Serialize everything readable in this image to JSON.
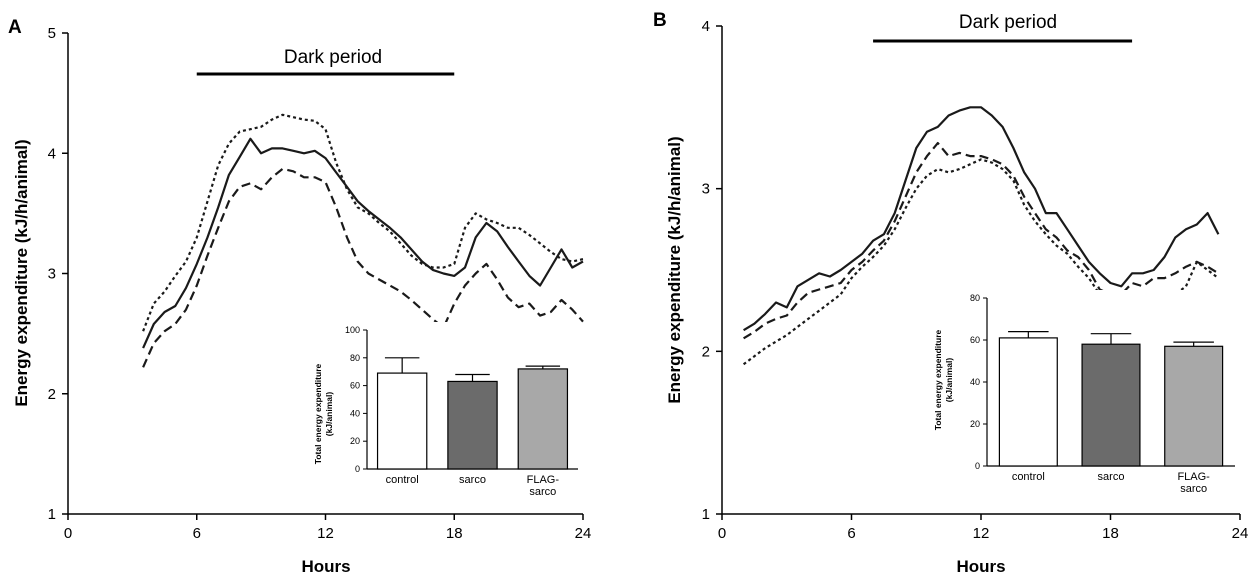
{
  "colors": {
    "axis": "#000000",
    "line": "#1a1a1a",
    "bar_control": "#ffffff",
    "bar_sarco": "#6b6b6b",
    "bar_flag": "#a8a8a8"
  },
  "chart_data": [
    {
      "type": "line",
      "panel": "A",
      "annotation": "Dark period",
      "dark_period": [
        6,
        18
      ],
      "xlabel": "Hours",
      "ylabel": "Energy expenditure (kJ/h/animal)",
      "xlim": [
        0,
        24
      ],
      "ylim": [
        1,
        5
      ],
      "x_ticks": [
        "0",
        "6",
        "12",
        "18",
        "24"
      ],
      "y_ticks": [
        "1",
        "2",
        "3",
        "4",
        "5"
      ],
      "series": [
        {
          "style": "solid",
          "x": [
            3.5,
            4,
            4.5,
            5,
            5.5,
            6,
            6.5,
            7,
            7.5,
            8,
            8.5,
            9,
            9.5,
            10,
            10.5,
            11,
            11.5,
            12,
            12.5,
            13,
            13.5,
            14,
            14.5,
            15,
            15.5,
            16,
            16.5,
            17,
            17.5,
            18,
            18.5,
            19,
            19.5,
            20,
            20.5,
            21,
            21.5,
            22,
            22.5,
            23,
            23.5,
            24
          ],
          "y": [
            2.38,
            2.58,
            2.68,
            2.73,
            2.88,
            3.08,
            3.3,
            3.55,
            3.82,
            3.97,
            4.12,
            4.0,
            4.04,
            4.04,
            4.02,
            4.0,
            4.02,
            3.96,
            3.84,
            3.72,
            3.6,
            3.52,
            3.45,
            3.38,
            3.3,
            3.2,
            3.1,
            3.03,
            3.0,
            2.98,
            3.05,
            3.3,
            3.42,
            3.35,
            3.22,
            3.1,
            2.98,
            2.9,
            3.05,
            3.2,
            3.05,
            3.1
          ]
        },
        {
          "style": "dotted",
          "x": [
            3.5,
            4,
            4.5,
            5,
            5.5,
            6,
            6.5,
            7,
            7.5,
            8,
            8.5,
            9,
            9.5,
            10,
            10.5,
            11,
            11.5,
            12,
            12.5,
            13,
            13.5,
            14,
            14.5,
            15,
            15.5,
            16,
            16.5,
            17,
            17.5,
            18,
            18.5,
            19,
            19.5,
            20,
            20.5,
            21,
            21.5,
            22,
            22.5,
            23,
            23.5,
            24
          ],
          "y": [
            2.52,
            2.75,
            2.85,
            2.98,
            3.1,
            3.3,
            3.6,
            3.9,
            4.08,
            4.18,
            4.2,
            4.22,
            4.28,
            4.32,
            4.3,
            4.28,
            4.27,
            4.2,
            3.92,
            3.7,
            3.55,
            3.5,
            3.42,
            3.35,
            3.25,
            3.15,
            3.08,
            3.05,
            3.05,
            3.08,
            3.38,
            3.5,
            3.45,
            3.42,
            3.38,
            3.38,
            3.32,
            3.25,
            3.18,
            3.12,
            3.1,
            3.12
          ]
        },
        {
          "style": "dashed",
          "x": [
            3.5,
            4,
            4.5,
            5,
            5.5,
            6,
            6.5,
            7,
            7.5,
            8,
            8.5,
            9,
            9.5,
            10,
            10.5,
            11,
            11.5,
            12,
            12.5,
            13,
            13.5,
            14,
            14.5,
            15,
            15.5,
            16,
            16.5,
            17,
            17.5,
            18,
            18.5,
            19,
            19.5,
            20,
            20.5,
            21,
            21.5,
            22,
            22.5,
            23,
            23.5,
            24
          ],
          "y": [
            2.22,
            2.42,
            2.52,
            2.58,
            2.7,
            2.9,
            3.15,
            3.38,
            3.6,
            3.72,
            3.75,
            3.7,
            3.8,
            3.87,
            3.85,
            3.8,
            3.8,
            3.76,
            3.55,
            3.3,
            3.1,
            3.0,
            2.95,
            2.9,
            2.85,
            2.78,
            2.7,
            2.62,
            2.55,
            2.75,
            2.9,
            3.0,
            3.08,
            2.95,
            2.8,
            2.72,
            2.75,
            2.65,
            2.68,
            2.78,
            2.7,
            2.6
          ]
        }
      ],
      "inset": {
        "type": "bar",
        "ylabel": "Total energy expenditure (kJ/animal)",
        "ylim": [
          0,
          100
        ],
        "y_ticks": [
          "0",
          "20",
          "40",
          "60",
          "80",
          "100"
        ],
        "categories": [
          "control",
          "sarco",
          "FLAG-\nsarco"
        ],
        "values": [
          69,
          63,
          72
        ],
        "errors": [
          11,
          5,
          2
        ]
      }
    },
    {
      "type": "line",
      "panel": "B",
      "annotation": "Dark period",
      "dark_period": [
        7,
        19
      ],
      "xlabel": "Hours",
      "ylabel": "Energy expenditure (kJ/h/animal)",
      "xlim": [
        0,
        24
      ],
      "ylim": [
        1,
        4
      ],
      "x_ticks": [
        "0",
        "6",
        "12",
        "18",
        "24"
      ],
      "y_ticks": [
        "1",
        "2",
        "3",
        "4"
      ],
      "series": [
        {
          "style": "solid",
          "x": [
            1,
            1.5,
            2,
            2.5,
            3,
            3.5,
            4,
            4.5,
            5,
            5.5,
            6,
            6.5,
            7,
            7.5,
            8,
            8.5,
            9,
            9.5,
            10,
            10.5,
            11,
            11.5,
            12,
            12.5,
            13,
            13.5,
            14,
            14.5,
            15,
            15.5,
            16,
            16.5,
            17,
            17.5,
            18,
            18.5,
            19,
            19.5,
            20,
            20.5,
            21,
            21.5,
            22,
            22.5,
            23
          ],
          "y": [
            2.13,
            2.17,
            2.23,
            2.3,
            2.27,
            2.4,
            2.44,
            2.48,
            2.46,
            2.5,
            2.55,
            2.6,
            2.68,
            2.72,
            2.85,
            3.05,
            3.25,
            3.35,
            3.38,
            3.45,
            3.48,
            3.5,
            3.5,
            3.45,
            3.38,
            3.25,
            3.1,
            3.0,
            2.85,
            2.85,
            2.75,
            2.65,
            2.55,
            2.48,
            2.42,
            2.4,
            2.48,
            2.48,
            2.5,
            2.58,
            2.7,
            2.75,
            2.78,
            2.85,
            2.72
          ]
        },
        {
          "style": "dashed",
          "x": [
            1,
            1.5,
            2,
            2.5,
            3,
            3.5,
            4,
            4.5,
            5,
            5.5,
            6,
            6.5,
            7,
            7.5,
            8,
            8.5,
            9,
            9.5,
            10,
            10.5,
            11,
            11.5,
            12,
            12.5,
            13,
            13.5,
            14,
            14.5,
            15,
            15.5,
            16,
            16.5,
            17,
            17.5,
            18,
            18.5,
            19,
            19.5,
            20,
            20.5,
            21,
            21.5,
            22,
            22.5,
            23
          ],
          "y": [
            2.08,
            2.12,
            2.17,
            2.2,
            2.22,
            2.3,
            2.36,
            2.38,
            2.4,
            2.42,
            2.5,
            2.55,
            2.62,
            2.68,
            2.8,
            2.95,
            3.1,
            3.2,
            3.28,
            3.2,
            3.22,
            3.2,
            3.2,
            3.18,
            3.15,
            3.08,
            2.95,
            2.85,
            2.75,
            2.7,
            2.62,
            2.58,
            2.5,
            2.38,
            2.35,
            2.35,
            2.42,
            2.4,
            2.45,
            2.45,
            2.48,
            2.52,
            2.55,
            2.52,
            2.48
          ]
        },
        {
          "style": "dotted",
          "x": [
            1,
            1.5,
            2,
            2.5,
            3,
            3.5,
            4,
            4.5,
            5,
            5.5,
            6,
            6.5,
            7,
            7.5,
            8,
            8.5,
            9,
            9.5,
            10,
            10.5,
            11,
            11.5,
            12,
            12.5,
            13,
            13.5,
            14,
            14.5,
            15,
            15.5,
            16,
            16.5,
            17,
            17.5,
            18,
            18.5,
            19,
            19.5,
            20,
            20.5,
            21,
            21.5,
            22,
            22.5,
            23
          ],
          "y": [
            1.92,
            1.97,
            2.02,
            2.06,
            2.1,
            2.15,
            2.2,
            2.25,
            2.3,
            2.35,
            2.45,
            2.52,
            2.58,
            2.65,
            2.75,
            2.88,
            3.0,
            3.08,
            3.12,
            3.1,
            3.12,
            3.15,
            3.18,
            3.16,
            3.12,
            3.05,
            2.9,
            2.8,
            2.72,
            2.65,
            2.6,
            2.52,
            2.45,
            2.35,
            2.3,
            2.32,
            2.35,
            2.35,
            2.3,
            2.25,
            2.35,
            2.4,
            2.55,
            2.5,
            2.45
          ]
        }
      ],
      "inset": {
        "type": "bar",
        "ylabel": "Total energy expenditure (kJ/animal)",
        "ylim": [
          0,
          80
        ],
        "y_ticks": [
          "0",
          "20",
          "40",
          "60",
          "80"
        ],
        "categories": [
          "control",
          "sarco",
          "FLAG-\nsarco"
        ],
        "values": [
          61,
          58,
          57
        ],
        "errors": [
          3,
          5,
          2
        ]
      }
    }
  ]
}
